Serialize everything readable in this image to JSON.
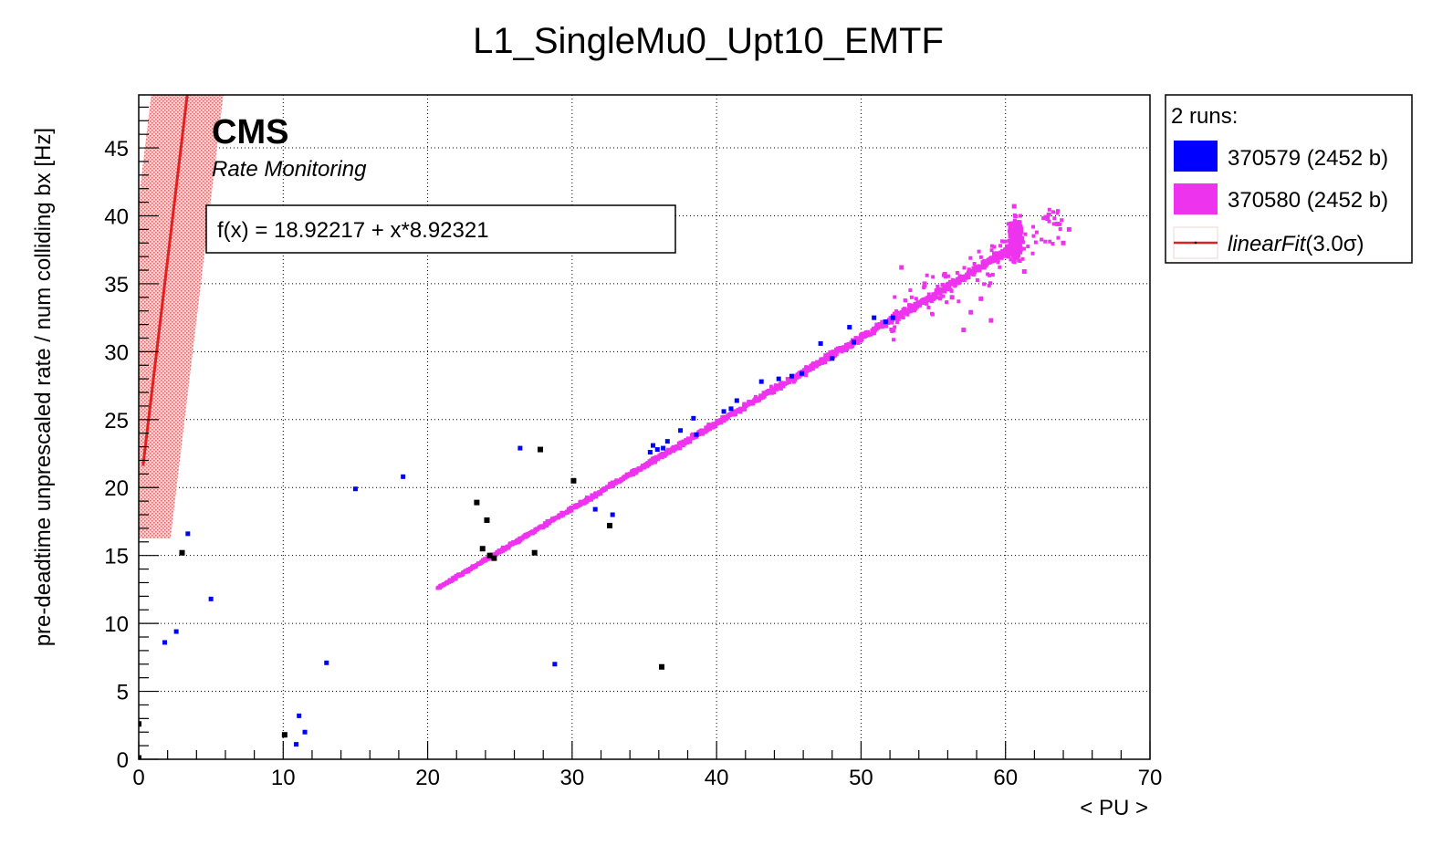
{
  "chart_data": {
    "type": "scatter",
    "title": "L1_SingleMu0_Upt10_EMTF",
    "xlabel": "< PU >",
    "ylabel": "pre-deadtime unprescaled rate / num colliding bx [Hz]",
    "xlim": [
      0,
      70
    ],
    "ylim": [
      0,
      48.9
    ],
    "xticks": [
      0,
      10,
      20,
      30,
      40,
      50,
      60,
      70
    ],
    "yticks": [
      0,
      5,
      10,
      15,
      20,
      25,
      30,
      35,
      40,
      45
    ],
    "grid": true,
    "annotation": {
      "experiment": "CMS",
      "subtitle": "Rate Monitoring",
      "fit_text": "f(x) = 18.92217 + x*8.92321"
    },
    "legend": {
      "header": "2 runs:",
      "placement": "right-outside-top",
      "entries": [
        {
          "label": "370579 (2452 b)",
          "color": "#0000ff",
          "kind": "box"
        },
        {
          "label": "370580 (2452 b)",
          "color": "#ee33ee",
          "kind": "box"
        },
        {
          "label_main": "linearFit",
          "label_arg": "(3.0σ)",
          "color": "#dd2222",
          "kind": "line"
        }
      ]
    },
    "fit": {
      "name": "linearFit",
      "intercept": 18.92217,
      "slope": 8.92321,
      "sigma": 3.0,
      "band_halfwidth": 2.5,
      "x_range": [
        0.3,
        3.4
      ],
      "color": "#dd2222"
    },
    "series": [
      {
        "name": "370580 (2452 b)",
        "color": "#ee33ee",
        "trend": {
          "x_start": 20.7,
          "x_end": 60.8,
          "y_start": 12.6,
          "y_end": 37.8
        },
        "cluster_center": [
          60.7,
          38.3
        ],
        "points": [
          [
            52.8,
            36.2
          ],
          [
            53.4,
            33.0
          ],
          [
            54.4,
            35.0
          ],
          [
            55.8,
            35.7
          ],
          [
            56.3,
            34.0
          ],
          [
            57.1,
            31.6
          ],
          [
            57.6,
            32.9
          ],
          [
            58.3,
            33.9
          ],
          [
            59.0,
            32.3
          ],
          [
            60.6,
            40.7
          ],
          [
            62.9,
            39.8
          ],
          [
            63.6,
            39.4
          ],
          [
            64.4,
            39.0
          ],
          [
            64.0,
            38.0
          ],
          [
            61.3,
            35.9
          ]
        ]
      },
      {
        "name": "370579 (2452 b)",
        "color": "#0000ff",
        "points": [
          [
            1.8,
            8.6
          ],
          [
            2.6,
            9.4
          ],
          [
            3.4,
            16.6
          ],
          [
            5.0,
            11.8
          ],
          [
            10.9,
            1.1
          ],
          [
            11.1,
            3.2
          ],
          [
            11.5,
            2.0
          ],
          [
            13.0,
            7.1
          ],
          [
            15.0,
            19.9
          ],
          [
            18.3,
            20.8
          ],
          [
            26.4,
            22.9
          ],
          [
            28.8,
            7.0
          ],
          [
            31.6,
            18.4
          ],
          [
            32.8,
            18.0
          ],
          [
            35.4,
            22.6
          ],
          [
            35.6,
            23.1
          ],
          [
            35.9,
            22.8
          ],
          [
            36.3,
            22.9
          ],
          [
            36.6,
            23.4
          ],
          [
            37.5,
            24.2
          ],
          [
            38.4,
            25.1
          ],
          [
            38.6,
            23.9
          ],
          [
            40.5,
            25.6
          ],
          [
            41.0,
            25.8
          ],
          [
            41.4,
            26.4
          ],
          [
            43.1,
            27.8
          ],
          [
            44.3,
            28.0
          ],
          [
            45.2,
            28.2
          ],
          [
            45.9,
            28.4
          ],
          [
            47.2,
            30.6
          ],
          [
            48.0,
            29.5
          ],
          [
            49.2,
            31.8
          ],
          [
            49.5,
            30.7
          ],
          [
            50.9,
            32.5
          ],
          [
            51.7,
            32.2
          ],
          [
            52.2,
            32.5
          ]
        ]
      },
      {
        "name": "unassigned (black)",
        "color": "#000000",
        "points": [
          [
            0.0,
            2.6
          ],
          [
            0.0,
            0.1
          ],
          [
            3.0,
            15.2
          ],
          [
            10.1,
            1.8
          ],
          [
            23.4,
            18.9
          ],
          [
            23.8,
            15.5
          ],
          [
            24.1,
            17.6
          ],
          [
            24.3,
            15.0
          ],
          [
            24.6,
            14.8
          ],
          [
            27.4,
            15.2
          ],
          [
            27.8,
            22.8
          ],
          [
            30.1,
            20.5
          ],
          [
            32.6,
            17.2
          ],
          [
            36.2,
            6.8
          ]
        ]
      }
    ]
  }
}
